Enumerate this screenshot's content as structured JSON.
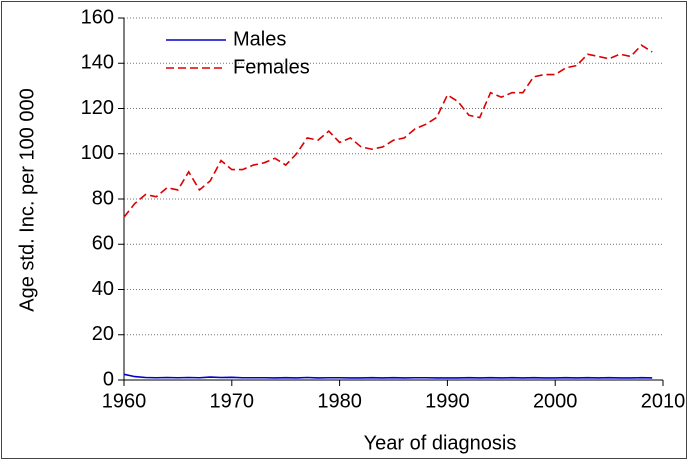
{
  "chart_data": {
    "type": "line",
    "x_label": "Year of diagnosis",
    "y_label": "Age std. Inc. per 100 000",
    "x": [
      1960,
      1961,
      1962,
      1963,
      1964,
      1965,
      1966,
      1967,
      1968,
      1969,
      1970,
      1971,
      1972,
      1973,
      1974,
      1975,
      1976,
      1977,
      1978,
      1979,
      1980,
      1981,
      1982,
      1983,
      1984,
      1985,
      1986,
      1987,
      1988,
      1989,
      1990,
      1991,
      1992,
      1993,
      1994,
      1995,
      1996,
      1997,
      1998,
      1999,
      2000,
      2001,
      2002,
      2003,
      2004,
      2005,
      2006,
      2007,
      2008,
      2009
    ],
    "series": [
      {
        "name": "Males",
        "color": "#0000cc",
        "style": "solid",
        "values": [
          2.5,
          1.5,
          1.1,
          1.0,
          1.1,
          1.0,
          1.1,
          1.0,
          1.3,
          1.1,
          1.2,
          1.0,
          1.0,
          1.0,
          0.9,
          1.0,
          0.9,
          1.1,
          0.9,
          1.0,
          1.0,
          0.9,
          0.9,
          1.0,
          0.9,
          1.0,
          0.9,
          1.0,
          1.0,
          0.9,
          0.9,
          0.9,
          1.0,
          0.9,
          1.0,
          0.9,
          1.0,
          0.9,
          1.0,
          0.9,
          0.9,
          1.0,
          0.9,
          1.0,
          0.9,
          1.0,
          0.9,
          0.9,
          1.0,
          0.9
        ]
      },
      {
        "name": "Females",
        "color": "#dd0000",
        "style": "dashed",
        "values": [
          72,
          78,
          82,
          81,
          85,
          84,
          92,
          84,
          88,
          97,
          93,
          93,
          95,
          96,
          98,
          95,
          100,
          107,
          106,
          110,
          105,
          107,
          103,
          102,
          103,
          106,
          107,
          111,
          113,
          116,
          126,
          123,
          117,
          116,
          127,
          125,
          127,
          127,
          134,
          135,
          135,
          138,
          139,
          144,
          143,
          142,
          144,
          143,
          148,
          145
        ]
      }
    ],
    "xlim": [
      1960,
      2010
    ],
    "xticks": [
      1960,
      1970,
      1980,
      1990,
      2000,
      2010
    ],
    "ylim": [
      0,
      160
    ],
    "yticks": [
      0,
      20,
      40,
      60,
      80,
      100,
      120,
      140,
      160
    ],
    "grid": true,
    "legend": "top-left"
  }
}
